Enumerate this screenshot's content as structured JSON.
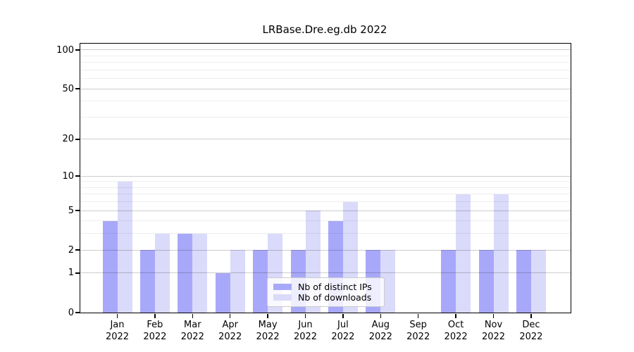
{
  "chart_data": {
    "type": "bar",
    "title": "LRBase.Dre.eg.db 2022",
    "categories": [
      "Jan",
      "Feb",
      "Mar",
      "Apr",
      "May",
      "Jun",
      "Jul",
      "Aug",
      "Sep",
      "Oct",
      "Nov",
      "Dec"
    ],
    "x_year_label": "2022",
    "series": [
      {
        "name": "Nb of distinct IPs",
        "color": "#a8a8fa",
        "values": [
          4,
          2,
          3,
          1,
          2,
          2,
          4,
          2,
          0,
          2,
          2,
          2
        ]
      },
      {
        "name": "Nb of downloads",
        "color": "#dadafa",
        "values": [
          9,
          3,
          3,
          2,
          3,
          5,
          6,
          2,
          0,
          7,
          7,
          2
        ]
      }
    ],
    "yscale": "log1p",
    "yticks": [
      0,
      1,
      2,
      5,
      10,
      20,
      50,
      100
    ],
    "minor_yticks": [
      3,
      4,
      6,
      7,
      8,
      9,
      30,
      40,
      60,
      70,
      80,
      90
    ],
    "ylim": [
      0,
      112
    ],
    "grid": true,
    "legend": {
      "items": [
        "Nb of distinct IPs",
        "Nb of downloads"
      ],
      "position": "lower center-right"
    },
    "colors": {
      "axis": "#000000",
      "grid_major": "#cccccc",
      "grid_minor": "#ededed",
      "legend_border": "#cccccc"
    }
  }
}
